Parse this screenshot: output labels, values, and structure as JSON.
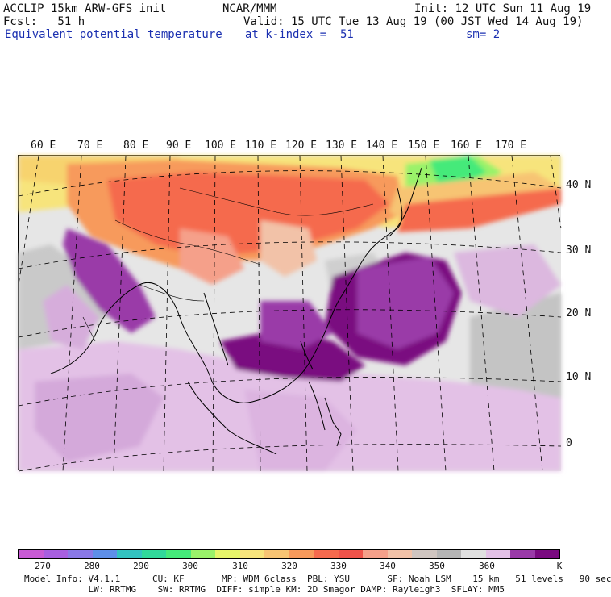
{
  "header": {
    "title": "ACCLIP 15km ARW-GFS init",
    "forecast": "Fcst:   51 h",
    "field": "Equivalent potential temperature",
    "center": "NCAR/MMM",
    "init": "Init: 12 UTC Sun 11 Aug 19",
    "valid": "Valid: 15 UTC Tue 13 Aug 19 (00 JST Wed 14 Aug 19)",
    "level": "at k-index =  51",
    "smoothing": "sm= 2"
  },
  "map": {
    "lon_labels": [
      "60 E",
      "70 E",
      "80 E",
      "90 E",
      "100 E",
      "110 E",
      "120 E",
      "130 E",
      "140 E",
      "150 E",
      "160 E",
      "170 E"
    ],
    "lat_labels": [
      "40 N",
      "30 N",
      "20 N",
      "10 N",
      "0"
    ]
  },
  "colorbar": {
    "colors": [
      "#c95bd5",
      "#a85fe0",
      "#8a78e6",
      "#5e8fe8",
      "#33c3c0",
      "#31d99a",
      "#45ea7a",
      "#9af26a",
      "#e6f56a",
      "#f7e47c",
      "#f7c473",
      "#f79a5c",
      "#f56a4e",
      "#f0534a",
      "#f5a08a",
      "#f2c2a8",
      "#cfc5c0",
      "#b5b5b5",
      "#e0e0e0",
      "#e3c1e6",
      "#9a3aa8",
      "#7a0a80"
    ],
    "tick_labels": [
      "270",
      "280",
      "290",
      "300",
      "310",
      "320",
      "330",
      "340",
      "350",
      "360"
    ],
    "unit": "K"
  },
  "footer": {
    "line1": "Model Info: V4.1.1      CU: KF       MP: WDM 6class  PBL: YSU       SF: Noah LSM    15 km   51 levels   90 sec",
    "line2": "            LW: RRTMG    SW: RRTMG  DIFF: simple KM: 2D Smagor DAMP: Rayleigh3  SFLAY: MM5"
  }
}
